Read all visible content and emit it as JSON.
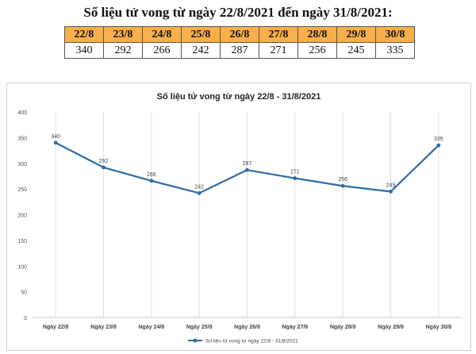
{
  "heading": "Số liệu tử vong từ ngày 22/8/2021 đến ngày 31/8/2021:",
  "table": {
    "dates": [
      "22/8",
      "23/8",
      "24/8",
      "25/8",
      "26/8",
      "27/8",
      "28/8",
      "29/8",
      "30/8"
    ],
    "values": [
      "340",
      "292",
      "266",
      "242",
      "287",
      "271",
      "256",
      "245",
      "335"
    ]
  },
  "colors": {
    "table_header": "#f7b04a",
    "series": "#2e6da4"
  },
  "chart_data": {
    "type": "line",
    "title": "Số liệu tử vong từ ngày 22/8 - 31/8/2021",
    "categories": [
      "Ngày 22/8",
      "Ngày 23/8",
      "Ngày 24/8",
      "Ngày 25/8",
      "Ngày 26/8",
      "Ngày 27/8",
      "Ngày 28/8",
      "Ngày 29/8",
      "Ngày 30/8"
    ],
    "series": [
      {
        "name": "Số liệu tử vong từ ngày 22/8 - 31/8/2021",
        "values": [
          340,
          292,
          266,
          242,
          287,
          271,
          256,
          245,
          335
        ]
      }
    ],
    "yticks": [
      "0",
      "50",
      "100",
      "150",
      "200",
      "250",
      "300",
      "350",
      "400"
    ],
    "ylim": [
      0,
      400
    ],
    "grid": "vertical",
    "legend": "bottom"
  }
}
